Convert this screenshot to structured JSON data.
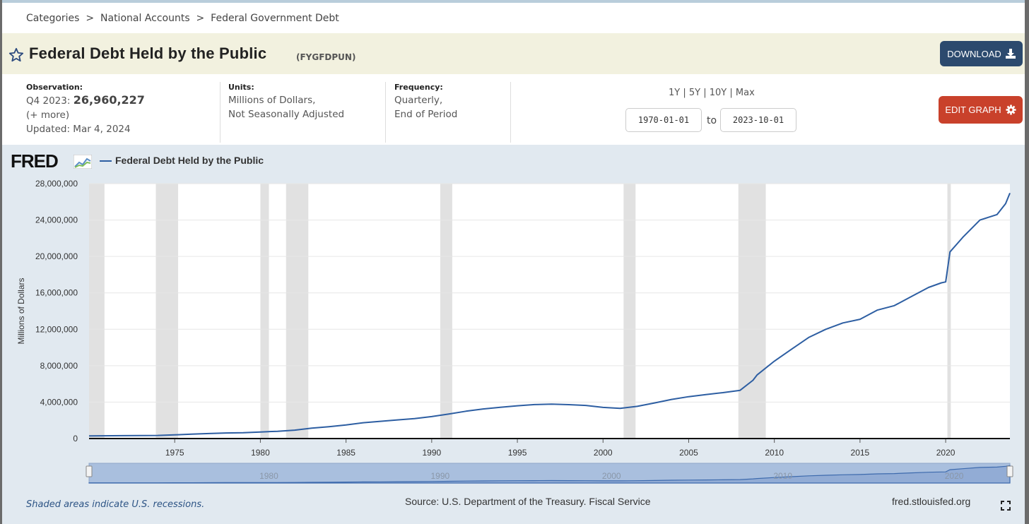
{
  "breadcrumb": [
    "Categories",
    "National Accounts",
    "Federal Government Debt"
  ],
  "breadcrumb_separator": ">",
  "header": {
    "title": "Federal Debt Held by the Public",
    "series_id": "(FYGFDPUN)",
    "download_label": "DOWNLOAD"
  },
  "observation": {
    "label": "Observation:",
    "period": "Q4 2023:",
    "value": "26,960,227",
    "more": "(+ more)",
    "updated": "Updated: Mar 4, 2024"
  },
  "units": {
    "label": "Units:",
    "line1": "Millions of Dollars,",
    "line2": "Not Seasonally Adjusted"
  },
  "frequency": {
    "label": "Frequency:",
    "line1": "Quarterly,",
    "line2": "End of Period"
  },
  "range": {
    "links": [
      "1Y",
      "5Y",
      "10Y",
      "Max"
    ],
    "start": "1970-01-01",
    "to_label": "to",
    "end": "2023-10-01"
  },
  "edit_graph_label": "EDIT GRAPH",
  "logo_text": "FRED",
  "footer": {
    "note": "Shaded areas indicate U.S. recessions.",
    "source": "Source: U.S. Department of the Treasury. Fiscal Service",
    "site": "fred.stlouisfed.org"
  },
  "colors": {
    "series": "#2d5ea2",
    "recession": "#e1e1e1",
    "download_button": "#2c4a6e",
    "edit_button": "#c9412b",
    "panel": "#e1e9f0"
  },
  "chart_data": {
    "type": "line",
    "ylabel": "Millions of Dollars",
    "ylim": [
      0,
      28000000
    ],
    "xlim": [
      1970.0,
      2023.75
    ],
    "y_ticks": [
      0,
      4000000,
      8000000,
      12000000,
      16000000,
      20000000,
      24000000,
      28000000
    ],
    "y_tick_labels": [
      "0",
      "4,000,000",
      "8,000,000",
      "12,000,000",
      "16,000,000",
      "20,000,000",
      "24,000,000",
      "28,000,000"
    ],
    "x_ticks": [
      1975,
      1980,
      1985,
      1990,
      1995,
      2000,
      2005,
      2010,
      2015,
      2020
    ],
    "x_tick_labels": [
      "1975",
      "1980",
      "1985",
      "1990",
      "1995",
      "2000",
      "2005",
      "2010",
      "2015",
      "2020"
    ],
    "grid": true,
    "recessions": [
      [
        1969.9,
        1970.9
      ],
      [
        1973.9,
        1975.2
      ],
      [
        1980.0,
        1980.5
      ],
      [
        1981.5,
        1982.8
      ],
      [
        1990.5,
        1991.2
      ],
      [
        2001.2,
        2001.9
      ],
      [
        2007.9,
        2009.5
      ],
      [
        2020.1,
        2020.3
      ]
    ],
    "navigator": {
      "labels": [
        "1980",
        "1990",
        "2000",
        "2010",
        "2020"
      ]
    },
    "series": [
      {
        "name": "Federal Debt Held by the Public",
        "x": [
          1970,
          1972,
          1974,
          1975,
          1976,
          1977,
          1978,
          1979,
          1980,
          1981,
          1982,
          1983,
          1984,
          1985,
          1986,
          1987,
          1988,
          1989,
          1990,
          1991,
          1992,
          1993,
          1994,
          1995,
          1996,
          1997,
          1998,
          1999,
          2000,
          2001,
          2002,
          2003,
          2004,
          2005,
          2006,
          2007,
          2008,
          2008.75,
          2009,
          2010,
          2011,
          2012,
          2013,
          2014,
          2015,
          2016,
          2017,
          2018,
          2019,
          2019.75,
          2020,
          2020.25,
          2021,
          2022,
          2022.5,
          2023,
          2023.5,
          2023.75
        ],
        "values": [
          290000,
          320000,
          340000,
          400000,
          480000,
          550000,
          610000,
          640000,
          720000,
          800000,
          920000,
          1140000,
          1300000,
          1500000,
          1740000,
          1890000,
          2050000,
          2190000,
          2410000,
          2690000,
          3000000,
          3250000,
          3430000,
          3600000,
          3730000,
          3780000,
          3720000,
          3640000,
          3420000,
          3320000,
          3540000,
          3910000,
          4300000,
          4600000,
          4830000,
          5040000,
          5300000,
          6400000,
          7000000,
          8500000,
          9800000,
          11100000,
          12000000,
          12700000,
          13100000,
          14100000,
          14600000,
          15600000,
          16600000,
          17100000,
          17200000,
          20500000,
          22100000,
          24000000,
          24300000,
          24600000,
          25800000,
          26960227
        ]
      }
    ]
  }
}
